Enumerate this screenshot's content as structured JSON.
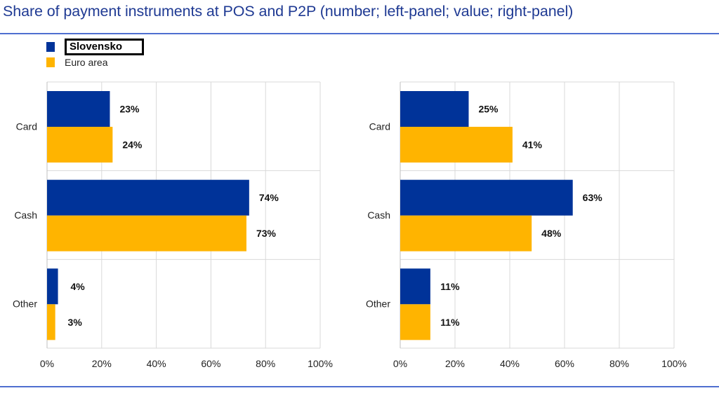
{
  "title": "Share of payment instruments at POS and P2P (number; left-panel; value; right-panel)",
  "colors": {
    "slovensko": "#003399",
    "euro_area": "#ffb400",
    "grid": "#d9d9d9",
    "rule": "#4f6fd0",
    "title": "#1f3a93"
  },
  "legend": [
    {
      "label": "Slovensko",
      "color": "#003399"
    },
    {
      "label": "Euro area",
      "color": "#ffb400"
    }
  ],
  "chart_data": [
    {
      "type": "bar",
      "orientation": "horizontal",
      "panel": "left",
      "categories": [
        "Card",
        "Cash",
        "Other"
      ],
      "series": [
        {
          "name": "Slovensko",
          "values": [
            23,
            74,
            4
          ],
          "labels": [
            "23%",
            "74%",
            "4%"
          ]
        },
        {
          "name": "Euro area",
          "values": [
            24,
            73,
            3
          ],
          "labels": [
            "24%",
            "73%",
            "3%"
          ]
        }
      ],
      "xlim": [
        0,
        100
      ],
      "xticks": [
        "0%",
        "20%",
        "40%",
        "60%",
        "80%",
        "100%"
      ],
      "grid": true,
      "legend": "top-left"
    },
    {
      "type": "bar",
      "orientation": "horizontal",
      "panel": "right",
      "categories": [
        "Card",
        "Cash",
        "Other"
      ],
      "series": [
        {
          "name": "Slovensko",
          "values": [
            25,
            63,
            11
          ],
          "labels": [
            "25%",
            "63%",
            "11%"
          ]
        },
        {
          "name": "Euro area",
          "values": [
            41,
            48,
            11
          ],
          "labels": [
            "41%",
            "48%",
            "11%"
          ]
        }
      ],
      "xlim": [
        0,
        100
      ],
      "xticks": [
        "0%",
        "20%",
        "40%",
        "60%",
        "80%",
        "100%"
      ],
      "grid": true
    }
  ]
}
